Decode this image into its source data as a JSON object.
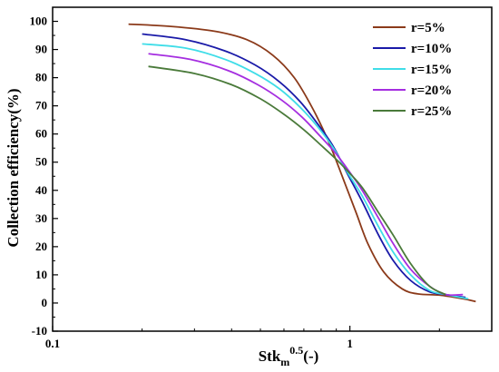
{
  "chart_data": {
    "type": "line",
    "xscale": "log",
    "xlim": [
      0.1,
      3.0
    ],
    "ylim": [
      -10,
      105
    ],
    "x_ticks": [
      0.1,
      1
    ],
    "x_tick_labels": [
      "0.1",
      "1"
    ],
    "y_ticks": [
      -10,
      0,
      10,
      20,
      30,
      40,
      50,
      60,
      70,
      80,
      90,
      100
    ],
    "y_tick_labels": [
      "-10",
      "0",
      "10",
      "20",
      "30",
      "40",
      "50",
      "60",
      "70",
      "80",
      "90",
      "100"
    ],
    "xlabel": {
      "base": "Stk",
      "sub": "m",
      "sup": "0.5",
      "tail": "(-)"
    },
    "ylabel": "Collection efficiency(%)",
    "grid": false,
    "legend_position": "top-right",
    "series": [
      {
        "name": "r=5%",
        "color": "#8b3a1a",
        "x": [
          0.18,
          0.25,
          0.35,
          0.45,
          0.55,
          0.65,
          0.75,
          0.85,
          0.95,
          1.05,
          1.15,
          1.3,
          1.5,
          1.7,
          2.0,
          2.4,
          2.65
        ],
        "y": [
          99,
          98.2,
          96.5,
          93.5,
          88,
          80,
          69,
          57,
          44,
          32,
          21,
          11,
          5,
          3.2,
          2.8,
          1.5,
          0.5
        ]
      },
      {
        "name": "r=10%",
        "color": "#1a1aa8",
        "x": [
          0.2,
          0.28,
          0.38,
          0.48,
          0.58,
          0.68,
          0.78,
          0.88,
          0.98,
          1.1,
          1.25,
          1.4,
          1.6,
          1.85,
          2.1,
          2.45
        ],
        "y": [
          95.5,
          93.5,
          89.5,
          84.5,
          78.5,
          71.5,
          63.5,
          55.5,
          46,
          36,
          24,
          15,
          8,
          4,
          3,
          2
        ]
      },
      {
        "name": "r=15%",
        "color": "#3fdde8",
        "x": [
          0.2,
          0.28,
          0.38,
          0.48,
          0.58,
          0.68,
          0.78,
          0.88,
          0.98,
          1.1,
          1.25,
          1.4,
          1.6,
          1.85,
          2.1,
          2.5
        ],
        "y": [
          92,
          90.5,
          86.5,
          81.5,
          76,
          69.5,
          62.5,
          55,
          46.5,
          38,
          27,
          18,
          10,
          4.5,
          3,
          1.5
        ]
      },
      {
        "name": "r=20%",
        "color": "#a52ee0",
        "x": [
          0.21,
          0.29,
          0.39,
          0.49,
          0.59,
          0.69,
          0.79,
          0.89,
          0.99,
          1.1,
          1.25,
          1.4,
          1.6,
          1.85,
          2.1,
          2.4
        ],
        "y": [
          88.5,
          86.5,
          82.5,
          77.5,
          72,
          66,
          59.5,
          53.5,
          47,
          40,
          30,
          21,
          12,
          6,
          3,
          3
        ]
      },
      {
        "name": "r=25%",
        "color": "#4a7a3a",
        "x": [
          0.21,
          0.3,
          0.4,
          0.5,
          0.6,
          0.7,
          0.8,
          0.9,
          0.99,
          1.1,
          1.25,
          1.4,
          1.6,
          1.85,
          2.1
        ],
        "y": [
          84,
          81.5,
          77.5,
          72.5,
          67,
          61.5,
          56,
          51,
          46.5,
          41,
          32,
          24,
          14,
          6,
          3
        ]
      }
    ]
  }
}
